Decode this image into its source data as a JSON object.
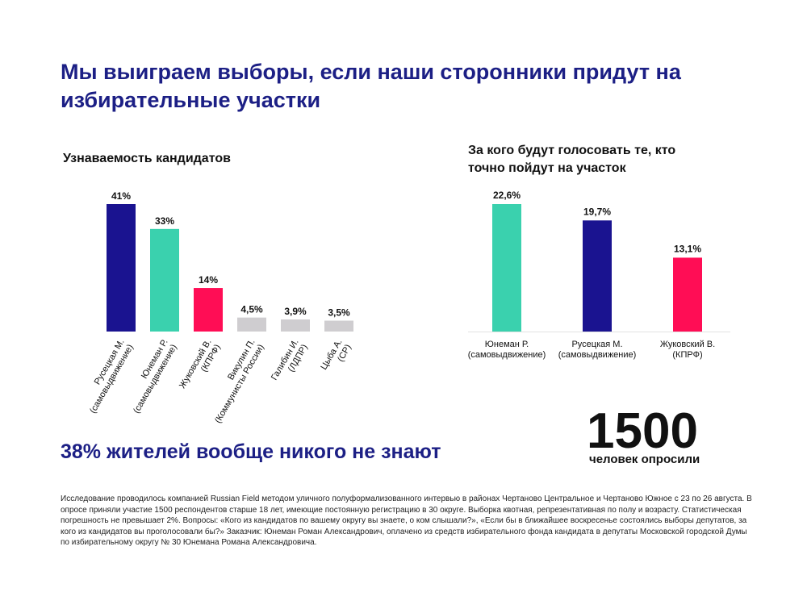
{
  "headline": "Мы выиграем выборы, если наши сторонники придут на избирательные участки",
  "colors": {
    "navy": "#1a1390",
    "teal": "#3ad1ae",
    "pink": "#ff0d55",
    "gray": "#cfcdd0",
    "title": "#1c1f85"
  },
  "chart_data": [
    {
      "type": "bar",
      "title": "Узнаваемость кандидатов",
      "categories": [
        [
          "Русецкая М.",
          "(самовыдвижение)"
        ],
        [
          "Юнеман Р.",
          "(самовыдвижение)"
        ],
        [
          "Жуковский В.",
          "(КПРФ)"
        ],
        [
          "Викулин П.",
          "(Коммунисты России)"
        ],
        [
          "Галибин И.",
          "(ЛДПР)"
        ],
        [
          "Цыба А.",
          "(СР)"
        ]
      ],
      "values": [
        41,
        33,
        14,
        4.5,
        3.9,
        3.5
      ],
      "value_labels": [
        "41%",
        "33%",
        "14%",
        "4,5%",
        "3,9%",
        "3,5%"
      ],
      "bar_colors": [
        "navy",
        "teal",
        "pink",
        "gray",
        "gray",
        "gray"
      ],
      "ylim": [
        0,
        41
      ],
      "grid": false,
      "legend": "none"
    },
    {
      "type": "bar",
      "title": "За кого будут голосовать те, кто точно пойдут на участок",
      "categories": [
        [
          "Юнеман Р.",
          "(самовыдвижение)"
        ],
        [
          "Русецкая М.",
          "(самовыдвижение)"
        ],
        [
          "Жуковский В.",
          "(КПРФ)"
        ]
      ],
      "values": [
        22.6,
        19.7,
        13.1
      ],
      "value_labels": [
        "22,6%",
        "19,7%",
        "13,1%"
      ],
      "bar_colors": [
        "teal",
        "navy",
        "pink"
      ],
      "ylim": [
        0,
        22.6
      ],
      "grid": false,
      "legend": "none"
    }
  ],
  "subhead": "38% жителей вообще никого не знают",
  "stat": {
    "number": "1500",
    "caption": "человек опросили"
  },
  "footnote": "Исследование проводилось компанией Russian Field методом уличного полуформализованного интервью в районах Чертаново Центральное и Чертаново Южное с 23 по 26 августа. В опросе приняли участие 1500 респондентов старше 18 лет, имеющие постоянную регистрацию в 30 округе. Выборка квотная, репрезентативная по полу и возрасту. Статистическая погрешность не превышает 2%. Вопросы: «Кого из кандидатов по вашему округу вы знаете, о ком слышали?», «Если бы в ближайшее воскресенье состоялись выборы депутатов, за кого из кандидатов вы проголосовали бы?» Заказчик: Юнеман Роман Александрович, оплачено из средств избирательного фонда кандидата в депутаты Московской городской Думы по избирательному округу № 30 Юнемана Романа Александровича."
}
